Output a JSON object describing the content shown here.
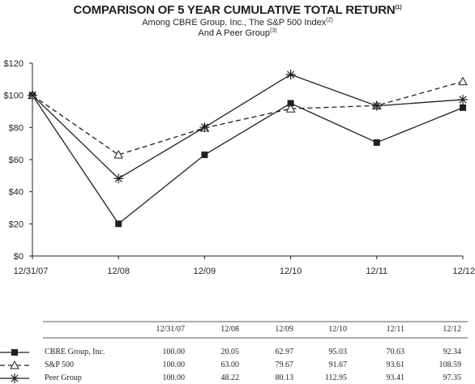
{
  "title": "COMPARISON OF 5 YEAR CUMULATIVE TOTAL RETURN",
  "title_note": "(1)",
  "subtitle1": "Among CBRE Group, Inc., The S&P 500 Index",
  "subtitle1_note": "(2)",
  "subtitle2": "And A Peer Group",
  "subtitle2_note": "(3)",
  "chart_data": {
    "type": "line",
    "categories": [
      "12/31/07",
      "12/08",
      "12/09",
      "12/10",
      "12/11",
      "12/12"
    ],
    "y_ticks": [
      "$0",
      "$20",
      "$40",
      "$60",
      "$80",
      "$100",
      "$120"
    ],
    "ylim": [
      0,
      120
    ],
    "grid": false,
    "legend": "table below chart",
    "series": [
      {
        "name": "CBRE Group, Inc.",
        "marker": "square",
        "dash": "solid",
        "values": [
          100.0,
          20.05,
          62.97,
          95.03,
          70.63,
          92.34
        ]
      },
      {
        "name": "S&P 500",
        "marker": "triangle",
        "dash": "dashed",
        "values": [
          100.0,
          63.0,
          79.67,
          91.67,
          93.61,
          108.59
        ]
      },
      {
        "name": "Peer Group",
        "marker": "star",
        "dash": "solid",
        "values": [
          100.0,
          48.22,
          80.13,
          112.95,
          93.41,
          97.35
        ]
      }
    ]
  },
  "table": {
    "headers": [
      "12/31/07",
      "12/08",
      "12/09",
      "12/10",
      "12/11",
      "12/12"
    ],
    "rows": [
      {
        "name": "CBRE Group, Inc.",
        "values": [
          "100.00",
          "20.05",
          "62.97",
          "95.03",
          "70.63",
          "92.34"
        ]
      },
      {
        "name": "S&P 500",
        "values": [
          "100.00",
          "63.00",
          "79.67",
          "91.67",
          "93.61",
          "108.59"
        ]
      },
      {
        "name": "Peer Group",
        "values": [
          "100.00",
          "48.22",
          "80.13",
          "112.95",
          "93.41",
          "97.35"
        ]
      }
    ]
  }
}
